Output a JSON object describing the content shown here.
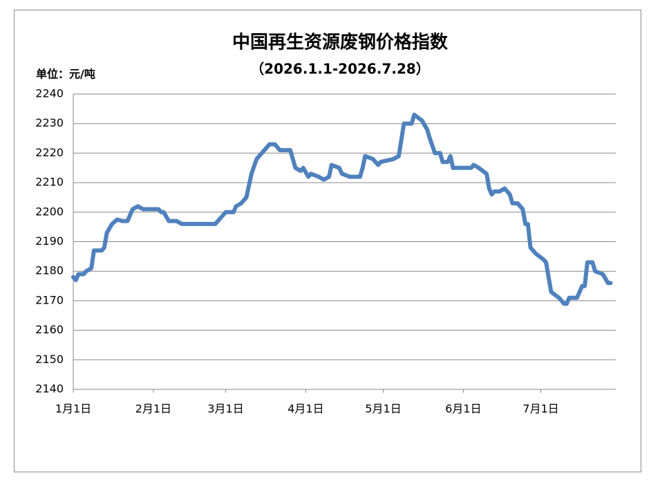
{
  "chart_data": {
    "type": "line",
    "title": "中国再生资源废钢价格指数",
    "subtitle": "（2026.1.1-2026.7.28）",
    "unit_label": "单位：元/吨",
    "color": "#4f81bd",
    "grid": true,
    "x": [
      "2026-01-01",
      "2026-01-02",
      "2026-01-03",
      "2026-01-05",
      "2026-01-06",
      "2026-01-08",
      "2026-01-09",
      "2026-01-12",
      "2026-01-13",
      "2026-01-14",
      "2026-01-16",
      "2026-01-18",
      "2026-01-20",
      "2026-01-22",
      "2026-01-23",
      "2026-01-24",
      "2026-01-26",
      "2026-01-28",
      "2026-02-03",
      "2026-02-04",
      "2026-02-05",
      "2026-02-07",
      "2026-02-10",
      "2026-02-12",
      "2026-02-25",
      "2026-02-27",
      "2026-03-01",
      "2026-03-04",
      "2026-03-05",
      "2026-03-07",
      "2026-03-09",
      "2026-03-11",
      "2026-03-13",
      "2026-03-16",
      "2026-03-18",
      "2026-03-20",
      "2026-03-22",
      "2026-03-26",
      "2026-03-28",
      "2026-03-30",
      "2026-03-31",
      "2026-04-02",
      "2026-04-03",
      "2026-04-06",
      "2026-04-08",
      "2026-04-10",
      "2026-04-11",
      "2026-04-14",
      "2026-04-15",
      "2026-04-18",
      "2026-04-22",
      "2026-04-23",
      "2026-04-24",
      "2026-04-27",
      "2026-04-29",
      "2026-04-30",
      "2026-05-05",
      "2026-05-07",
      "2026-05-09",
      "2026-05-12",
      "2026-05-13",
      "2026-05-16",
      "2026-05-18",
      "2026-05-19",
      "2026-05-21",
      "2026-05-23",
      "2026-05-24",
      "2026-05-26",
      "2026-05-27",
      "2026-05-28",
      "2026-06-04",
      "2026-06-05",
      "2026-06-07",
      "2026-06-10",
      "2026-06-11",
      "2026-06-12",
      "2026-06-13",
      "2026-06-15",
      "2026-06-17",
      "2026-06-19",
      "2026-06-20",
      "2026-06-22",
      "2026-06-24",
      "2026-06-25",
      "2026-06-26",
      "2026-06-27",
      "2026-06-29",
      "2026-07-02",
      "2026-07-03",
      "2026-07-05",
      "2026-07-08",
      "2026-07-10",
      "2026-07-11",
      "2026-07-12",
      "2026-07-15",
      "2026-07-17",
      "2026-07-18",
      "2026-07-19",
      "2026-07-21",
      "2026-07-22",
      "2026-07-25",
      "2026-07-27",
      "2026-07-28"
    ],
    "values": [
      2178,
      2177,
      2179,
      2179,
      2180,
      2181,
      2187,
      2187,
      2188,
      2193,
      2196,
      2197.5,
      2197,
      2197,
      2199,
      2201,
      2202,
      2201,
      2201,
      2200,
      2200,
      2197,
      2197,
      2196,
      2196,
      2198,
      2200,
      2200,
      2202,
      2203,
      2205,
      2213,
      2218,
      2221,
      2223,
      2223,
      2221,
      2221,
      2215,
      2214,
      2215,
      2212,
      2213,
      2212,
      2211,
      2212,
      2216,
      2215,
      2213,
      2212,
      2212,
      2215,
      2219,
      2218,
      2216,
      2217,
      2218,
      2219,
      2230,
      2230,
      2233,
      2231,
      2228,
      2225,
      2220,
      2220,
      2217,
      2217,
      2219,
      2215,
      2215,
      2216,
      2215,
      2213,
      2208,
      2206,
      2207,
      2207,
      2208,
      2206,
      2203,
      2203,
      2201,
      2196,
      2196,
      2188,
      2186,
      2184,
      2183,
      2173,
      2171,
      2169,
      2169,
      2171,
      2171,
      2175,
      2175,
      2183,
      2183,
      2180,
      2179,
      2176,
      2176
    ],
    "xlim": [
      "2026-01-01",
      "2026-07-30"
    ],
    "xticks": [
      {
        "value": "2026-01-01",
        "label": "1月1日"
      },
      {
        "value": "2026-02-01",
        "label": "2月1日"
      },
      {
        "value": "2026-03-01",
        "label": "3月1日"
      },
      {
        "value": "2026-04-01",
        "label": "4月1日"
      },
      {
        "value": "2026-05-01",
        "label": "5月1日"
      },
      {
        "value": "2026-06-01",
        "label": "6月1日"
      },
      {
        "value": "2026-07-01",
        "label": "7月1日"
      }
    ],
    "ylim": [
      2140,
      2240
    ],
    "yticks": [
      2140,
      2150,
      2160,
      2170,
      2180,
      2190,
      2200,
      2210,
      2220,
      2230,
      2240
    ]
  }
}
